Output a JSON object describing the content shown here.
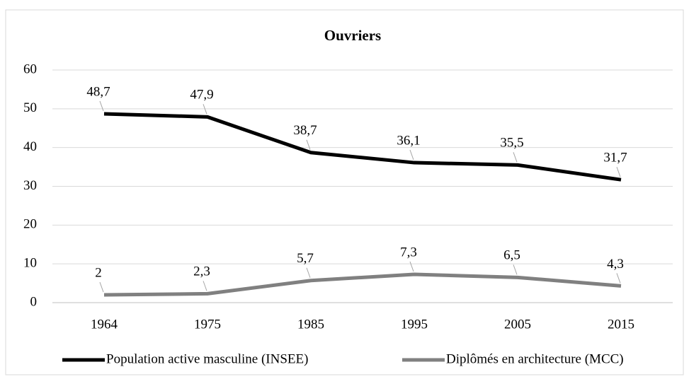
{
  "chart_data": {
    "type": "line",
    "title": "Ouvriers",
    "categories": [
      "1964",
      "1975",
      "1985",
      "1995",
      "2005",
      "2015"
    ],
    "series": [
      {
        "name": "Population active masculine (INSEE)",
        "color": "#000000",
        "values": [
          48.7,
          47.9,
          38.7,
          36.1,
          35.5,
          31.7
        ],
        "value_labels": [
          "48,7",
          "47,9",
          "38,7",
          "36,1",
          "35,5",
          "31,7"
        ]
      },
      {
        "name": "Diplômés en architecture (MCC)",
        "color": "#808080",
        "values": [
          2,
          2.3,
          5.7,
          7.3,
          6.5,
          4.3
        ],
        "value_labels": [
          "2",
          "2,3",
          "5,7",
          "7,3",
          "6,5",
          "4,3"
        ]
      }
    ],
    "ylim": [
      0,
      60
    ],
    "yticks": [
      0,
      10,
      20,
      30,
      40,
      50,
      60
    ],
    "grid": true,
    "legend": "bottom"
  }
}
